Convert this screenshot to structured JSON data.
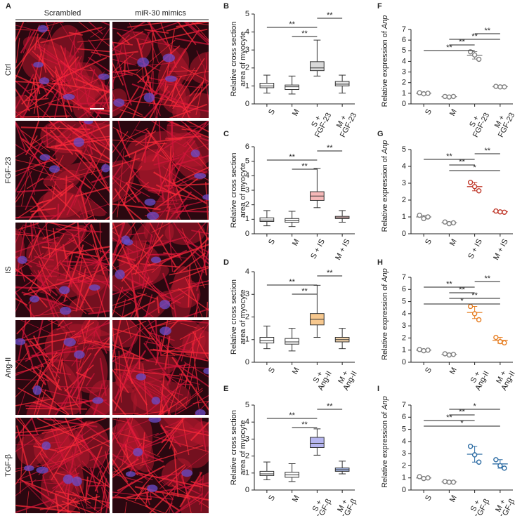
{
  "panel_a": {
    "label": "A",
    "columns": [
      "Scrambled",
      "miR-30 mimics"
    ],
    "rows": [
      "Ctrl",
      "FGF-23",
      "IS",
      "Ang-II",
      "TGF-β"
    ]
  },
  "chart_data": [
    {
      "type": "box",
      "label": "B",
      "ylabel": [
        "Relative cross section",
        "area of myocyte"
      ],
      "categories": [
        "S",
        "M",
        "S +\nFGF-23",
        "M +\nFGF-23"
      ],
      "colors": [
        "#ffffff",
        "#ffffff",
        "#d9d9d9",
        "#e6e6e6"
      ],
      "boxes": [
        {
          "min": 0.6,
          "q1": 0.9,
          "median": 1.0,
          "q3": 1.15,
          "max": 1.6
        },
        {
          "min": 0.55,
          "q1": 0.8,
          "median": 0.95,
          "q3": 1.05,
          "max": 1.55
        },
        {
          "min": 1.55,
          "q1": 1.85,
          "median": 2.0,
          "q3": 2.35,
          "max": 3.55
        },
        {
          "min": 0.6,
          "q1": 1.0,
          "median": 1.1,
          "q3": 1.25,
          "max": 1.6
        }
      ],
      "ylim": [
        0,
        5
      ],
      "yticks": [
        0,
        1,
        2,
        3,
        4,
        5
      ],
      "comparisons": [
        {
          "between": [
            1,
            2
          ],
          "label": "**"
        },
        {
          "between": [
            0,
            2
          ],
          "label": "**"
        },
        {
          "between": [
            2,
            3
          ],
          "label": "**"
        }
      ]
    },
    {
      "type": "box",
      "label": "C",
      "ylabel": [
        "Relative cross section",
        "area of myocyte"
      ],
      "categories": [
        "S",
        "M",
        "S + IS",
        "M + IS"
      ],
      "colors": [
        "#ffffff",
        "#ffffff",
        "#f6b8b8",
        "#f3c6c6"
      ],
      "boxes": [
        {
          "min": 0.55,
          "q1": 0.85,
          "median": 0.95,
          "q3": 1.1,
          "max": 1.6
        },
        {
          "min": 0.5,
          "q1": 0.8,
          "median": 0.9,
          "q3": 1.05,
          "max": 1.55
        },
        {
          "min": 1.8,
          "q1": 2.3,
          "median": 2.6,
          "q3": 2.9,
          "max": 4.5
        },
        {
          "min": 0.8,
          "q1": 1.05,
          "median": 1.1,
          "q3": 1.2,
          "max": 1.6
        }
      ],
      "ylim": [
        0,
        6
      ],
      "yticks": [
        0,
        1,
        2,
        3,
        4,
        5,
        6
      ],
      "comparisons": [
        {
          "between": [
            1,
            2
          ],
          "label": "**"
        },
        {
          "between": [
            0,
            2
          ],
          "label": "**"
        },
        {
          "between": [
            2,
            3
          ],
          "label": "**"
        }
      ]
    },
    {
      "type": "box",
      "label": "D",
      "ylabel": [
        "Relative cross section",
        "area of myocyte"
      ],
      "categories": [
        "S",
        "M",
        "S +\nAng-II",
        "M +\nAng-II"
      ],
      "colors": [
        "#ffffff",
        "#ffffff",
        "#f7c88e",
        "#f5d6ae"
      ],
      "boxes": [
        {
          "min": 0.6,
          "q1": 0.85,
          "median": 0.95,
          "q3": 1.1,
          "max": 1.6
        },
        {
          "min": 0.5,
          "q1": 0.8,
          "median": 0.9,
          "q3": 1.05,
          "max": 1.5
        },
        {
          "min": 1.1,
          "q1": 1.65,
          "median": 1.9,
          "q3": 2.15,
          "max": 3.4
        },
        {
          "min": 0.6,
          "q1": 0.9,
          "median": 1.0,
          "q3": 1.1,
          "max": 1.5
        }
      ],
      "ylim": [
        0,
        4
      ],
      "yticks": [
        0,
        1,
        2,
        3,
        4
      ],
      "comparisons": [
        {
          "between": [
            1,
            2
          ],
          "label": "**"
        },
        {
          "between": [
            0,
            2
          ],
          "label": "**"
        },
        {
          "between": [
            2,
            3
          ],
          "label": "**"
        }
      ]
    },
    {
      "type": "box",
      "label": "E",
      "ylabel": [
        "Relative cross section",
        "area of myocyte"
      ],
      "categories": [
        "S",
        "M",
        "S +\nTGF-β",
        "M +\nTGF-β"
      ],
      "colors": [
        "#ffffff",
        "#ffffff",
        "#b6b6f0",
        "#aabbe8"
      ],
      "boxes": [
        {
          "min": 0.6,
          "q1": 0.85,
          "median": 0.95,
          "q3": 1.1,
          "max": 1.65
        },
        {
          "min": 0.5,
          "q1": 0.75,
          "median": 0.9,
          "q3": 1.05,
          "max": 1.55
        },
        {
          "min": 2.05,
          "q1": 2.5,
          "median": 2.75,
          "q3": 3.1,
          "max": 3.6
        },
        {
          "min": 0.95,
          "q1": 1.1,
          "median": 1.2,
          "q3": 1.3,
          "max": 1.7
        }
      ],
      "ylim": [
        0,
        5
      ],
      "yticks": [
        0,
        1,
        2,
        3,
        4,
        5
      ],
      "comparisons": [
        {
          "between": [
            1,
            2
          ],
          "label": "**"
        },
        {
          "between": [
            0,
            2
          ],
          "label": "**"
        },
        {
          "between": [
            2,
            3
          ],
          "label": "**"
        }
      ]
    },
    {
      "type": "dot",
      "label": "F",
      "ylabel": "Relative expression of",
      "ylabel_gene": "Anp",
      "categories": [
        "S",
        "M",
        "S +\nFGF-23",
        "M +\nFGF-23"
      ],
      "colors": [
        "#808080",
        "#808080",
        "#808080",
        "#808080"
      ],
      "points": [
        [
          1.05,
          0.95,
          1.0
        ],
        [
          0.7,
          0.65,
          0.7
        ],
        [
          4.9,
          4.6,
          4.2
        ],
        [
          1.65,
          1.6,
          1.6
        ]
      ],
      "means": [
        1.0,
        0.68,
        4.57,
        1.62
      ],
      "errors": [
        0.07,
        0.05,
        0.35,
        0.05
      ],
      "ylim": [
        0,
        7
      ],
      "yticks": [
        0,
        1,
        2,
        3,
        4,
        5,
        6,
        7
      ],
      "comparisons": [
        {
          "between": [
            0,
            2
          ],
          "label": "**"
        },
        {
          "between": [
            1,
            2
          ],
          "label": "**"
        },
        {
          "between": [
            1,
            3
          ],
          "label": "**"
        },
        {
          "between": [
            2,
            3
          ],
          "label": "**"
        }
      ]
    },
    {
      "type": "dot",
      "label": "G",
      "ylabel": "Relative expression of",
      "ylabel_gene": "Anp",
      "categories": [
        "S",
        "M",
        "S + IS",
        "M + IS"
      ],
      "colors": [
        "#808080",
        "#808080",
        "#c0392b",
        "#c0392b"
      ],
      "points": [
        [
          1.1,
          0.9,
          1.0
        ],
        [
          0.7,
          0.6,
          0.65
        ],
        [
          3.05,
          2.8,
          2.55
        ],
        [
          1.35,
          1.3,
          1.28
        ]
      ],
      "means": [
        1.0,
        0.65,
        2.8,
        1.31
      ],
      "errors": [
        0.1,
        0.05,
        0.25,
        0.04
      ],
      "ylim": [
        0,
        5
      ],
      "yticks": [
        0,
        1,
        2,
        3,
        4,
        5
      ],
      "comparisons": [
        {
          "between": [
            1,
            3
          ],
          "label": "*"
        },
        {
          "between": [
            1,
            2
          ],
          "label": "**"
        },
        {
          "between": [
            0,
            2
          ],
          "label": "**"
        },
        {
          "between": [
            2,
            3
          ],
          "label": "**"
        }
      ]
    },
    {
      "type": "dot",
      "label": "H",
      "ylabel": "Relative expression of",
      "ylabel_gene": "Anp",
      "categories": [
        "S",
        "M",
        "S +\nAng-II",
        "M +\nAng-II"
      ],
      "colors": [
        "#808080",
        "#808080",
        "#e67e22",
        "#e67e22"
      ],
      "points": [
        [
          1.05,
          0.95,
          1.0
        ],
        [
          0.7,
          0.6,
          0.65
        ],
        [
          4.6,
          4.0,
          3.5
        ],
        [
          2.05,
          1.7,
          1.6
        ]
      ],
      "means": [
        1.0,
        0.65,
        4.1,
        1.8
      ],
      "errors": [
        0.05,
        0.05,
        0.5,
        0.25
      ],
      "ylim": [
        0,
        7
      ],
      "yticks": [
        0,
        1,
        2,
        3,
        4,
        5,
        6,
        7
      ],
      "comparisons": [
        {
          "between": [
            0,
            3
          ],
          "label": "*"
        },
        {
          "between": [
            1,
            3
          ],
          "label": "**"
        },
        {
          "between": [
            1,
            2
          ],
          "label": "**"
        },
        {
          "between": [
            0,
            2
          ],
          "label": "**"
        },
        {
          "between": [
            2,
            3
          ],
          "label": "**"
        }
      ]
    },
    {
      "type": "dot",
      "label": "I",
      "ylabel": "Relative expression of",
      "ylabel_gene": "Anp",
      "categories": [
        "S",
        "M",
        "S +\nTGF-β",
        "M +\nTGF-β"
      ],
      "colors": [
        "#808080",
        "#808080",
        "#2e6da4",
        "#2e6da4"
      ],
      "points": [
        [
          1.1,
          0.95,
          1.0
        ],
        [
          0.7,
          0.65,
          0.65
        ],
        [
          3.6,
          2.9,
          2.3
        ],
        [
          2.5,
          2.0,
          1.8
        ]
      ],
      "means": [
        1.0,
        0.67,
        2.95,
        2.15
      ],
      "errors": [
        0.08,
        0.03,
        0.65,
        0.35
      ],
      "ylim": [
        0,
        7
      ],
      "yticks": [
        0,
        1,
        2,
        3,
        4,
        5,
        6,
        7
      ],
      "comparisons": [
        {
          "between": [
            0,
            3
          ],
          "label": "*"
        },
        {
          "between": [
            0,
            2
          ],
          "label": "**"
        },
        {
          "between": [
            1,
            2
          ],
          "label": "**"
        },
        {
          "between": [
            1,
            3
          ],
          "label": "*"
        }
      ]
    }
  ]
}
